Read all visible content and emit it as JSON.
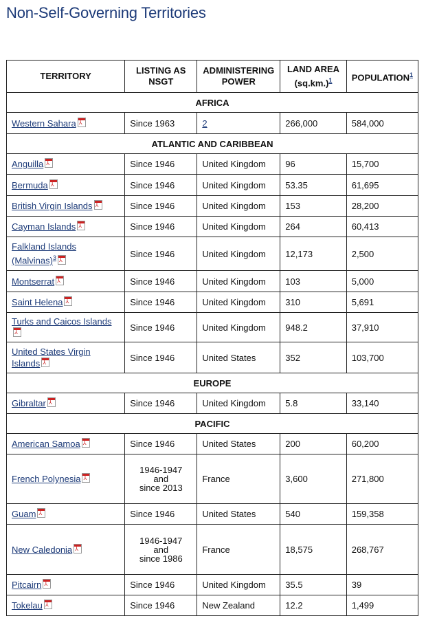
{
  "title": "Non-Self-Governing Territories",
  "headers": {
    "territory": "TERRITORY",
    "listing": "LISTING AS NSGT",
    "power": "ADMINISTERING POWER",
    "area": "LAND AREA (sq.km.)",
    "area_note": "1",
    "population": "POPULATION",
    "population_note": "1"
  },
  "icons": {
    "pdf": "pdf-file-icon"
  },
  "regions": [
    {
      "name": "AFRICA",
      "rows": [
        {
          "territory": "Western Sahara",
          "listing": "Since 1963",
          "power": "",
          "power_link": "2",
          "area": "266,000",
          "population": "584,000",
          "h": 31
        }
      ]
    },
    {
      "name": "ATLANTIC AND CARIBBEAN",
      "rows": [
        {
          "territory": "Anguilla",
          "listing": "Since 1946",
          "power": "United Kingdom",
          "area": "96",
          "population": "15,700",
          "h": 30
        },
        {
          "territory": "Bermuda",
          "listing": "Since 1946",
          "power": "United Kingdom",
          "area": "53.35",
          "population": "61,695",
          "h": 31
        },
        {
          "territory": "British Virgin Islands",
          "listing": "Since 1946",
          "power": "United Kingdom",
          "area": "153",
          "population": "28,200",
          "h": 30
        },
        {
          "territory": "Cayman Islands",
          "listing": "Since 1946",
          "power": "United Kingdom",
          "area": "264",
          "population": "60,413",
          "h": 30
        },
        {
          "territory": "Falkland Islands (Malvinas)",
          "territory_note": "3",
          "listing": "Since 1946",
          "power": "United Kingdom",
          "area": "12,173",
          "population": "2,500",
          "h": 49
        },
        {
          "territory": "Montserrat",
          "listing": "Since 1946",
          "power": "United Kingdom",
          "area": "103",
          "population": "5,000",
          "h": 31
        },
        {
          "territory": "Saint Helena",
          "listing": "Since 1946",
          "power": "United Kingdom",
          "area": "310",
          "population": "5,691",
          "h": 30
        },
        {
          "territory": "Turks and Caicos Islands",
          "listing": "Since 1946",
          "power": "United Kingdom",
          "area": "948.2",
          "population": "37,910",
          "h": 43
        },
        {
          "territory": "United States Virgin Islands",
          "listing": "Since 1946",
          "power": "United States",
          "area": "352",
          "population": "103,700",
          "h": 45
        }
      ]
    },
    {
      "name": "EUROPE",
      "rows": [
        {
          "territory": "Gibraltar",
          "listing": "Since 1946",
          "power": "United Kingdom",
          "area": "5.8",
          "population": "33,140",
          "h": 30
        }
      ]
    },
    {
      "name": "PACIFIC",
      "rows": [
        {
          "territory": "American Samoa",
          "listing": "Since 1946",
          "power": "United States",
          "area": "200",
          "population": "60,200",
          "h": 30
        },
        {
          "territory": "French Polynesia",
          "listing_lines": [
            "1946-1947",
            "and",
            "since 2013"
          ],
          "power": "France",
          "area": "3,600",
          "population": "271,800",
          "h": 72
        },
        {
          "territory": "Guam",
          "listing": "Since 1946",
          "power": "United States",
          "area": "540",
          "population": "159,358",
          "h": 30
        },
        {
          "territory": "New Caledonia",
          "listing_lines": [
            "1946-1947",
            "and",
            "since 1986"
          ],
          "power": "France",
          "area": "18,575",
          "population": "268,767",
          "h": 73
        },
        {
          "territory": "Pitcairn",
          "listing": "Since 1946",
          "power": "United Kingdom",
          "area": "35.5",
          "population": "39",
          "h": 30
        },
        {
          "territory": "Tokelau",
          "listing": "Since 1946",
          "power": "New Zealand",
          "area": "12.2",
          "population": "1,499",
          "h": 30
        }
      ]
    }
  ]
}
